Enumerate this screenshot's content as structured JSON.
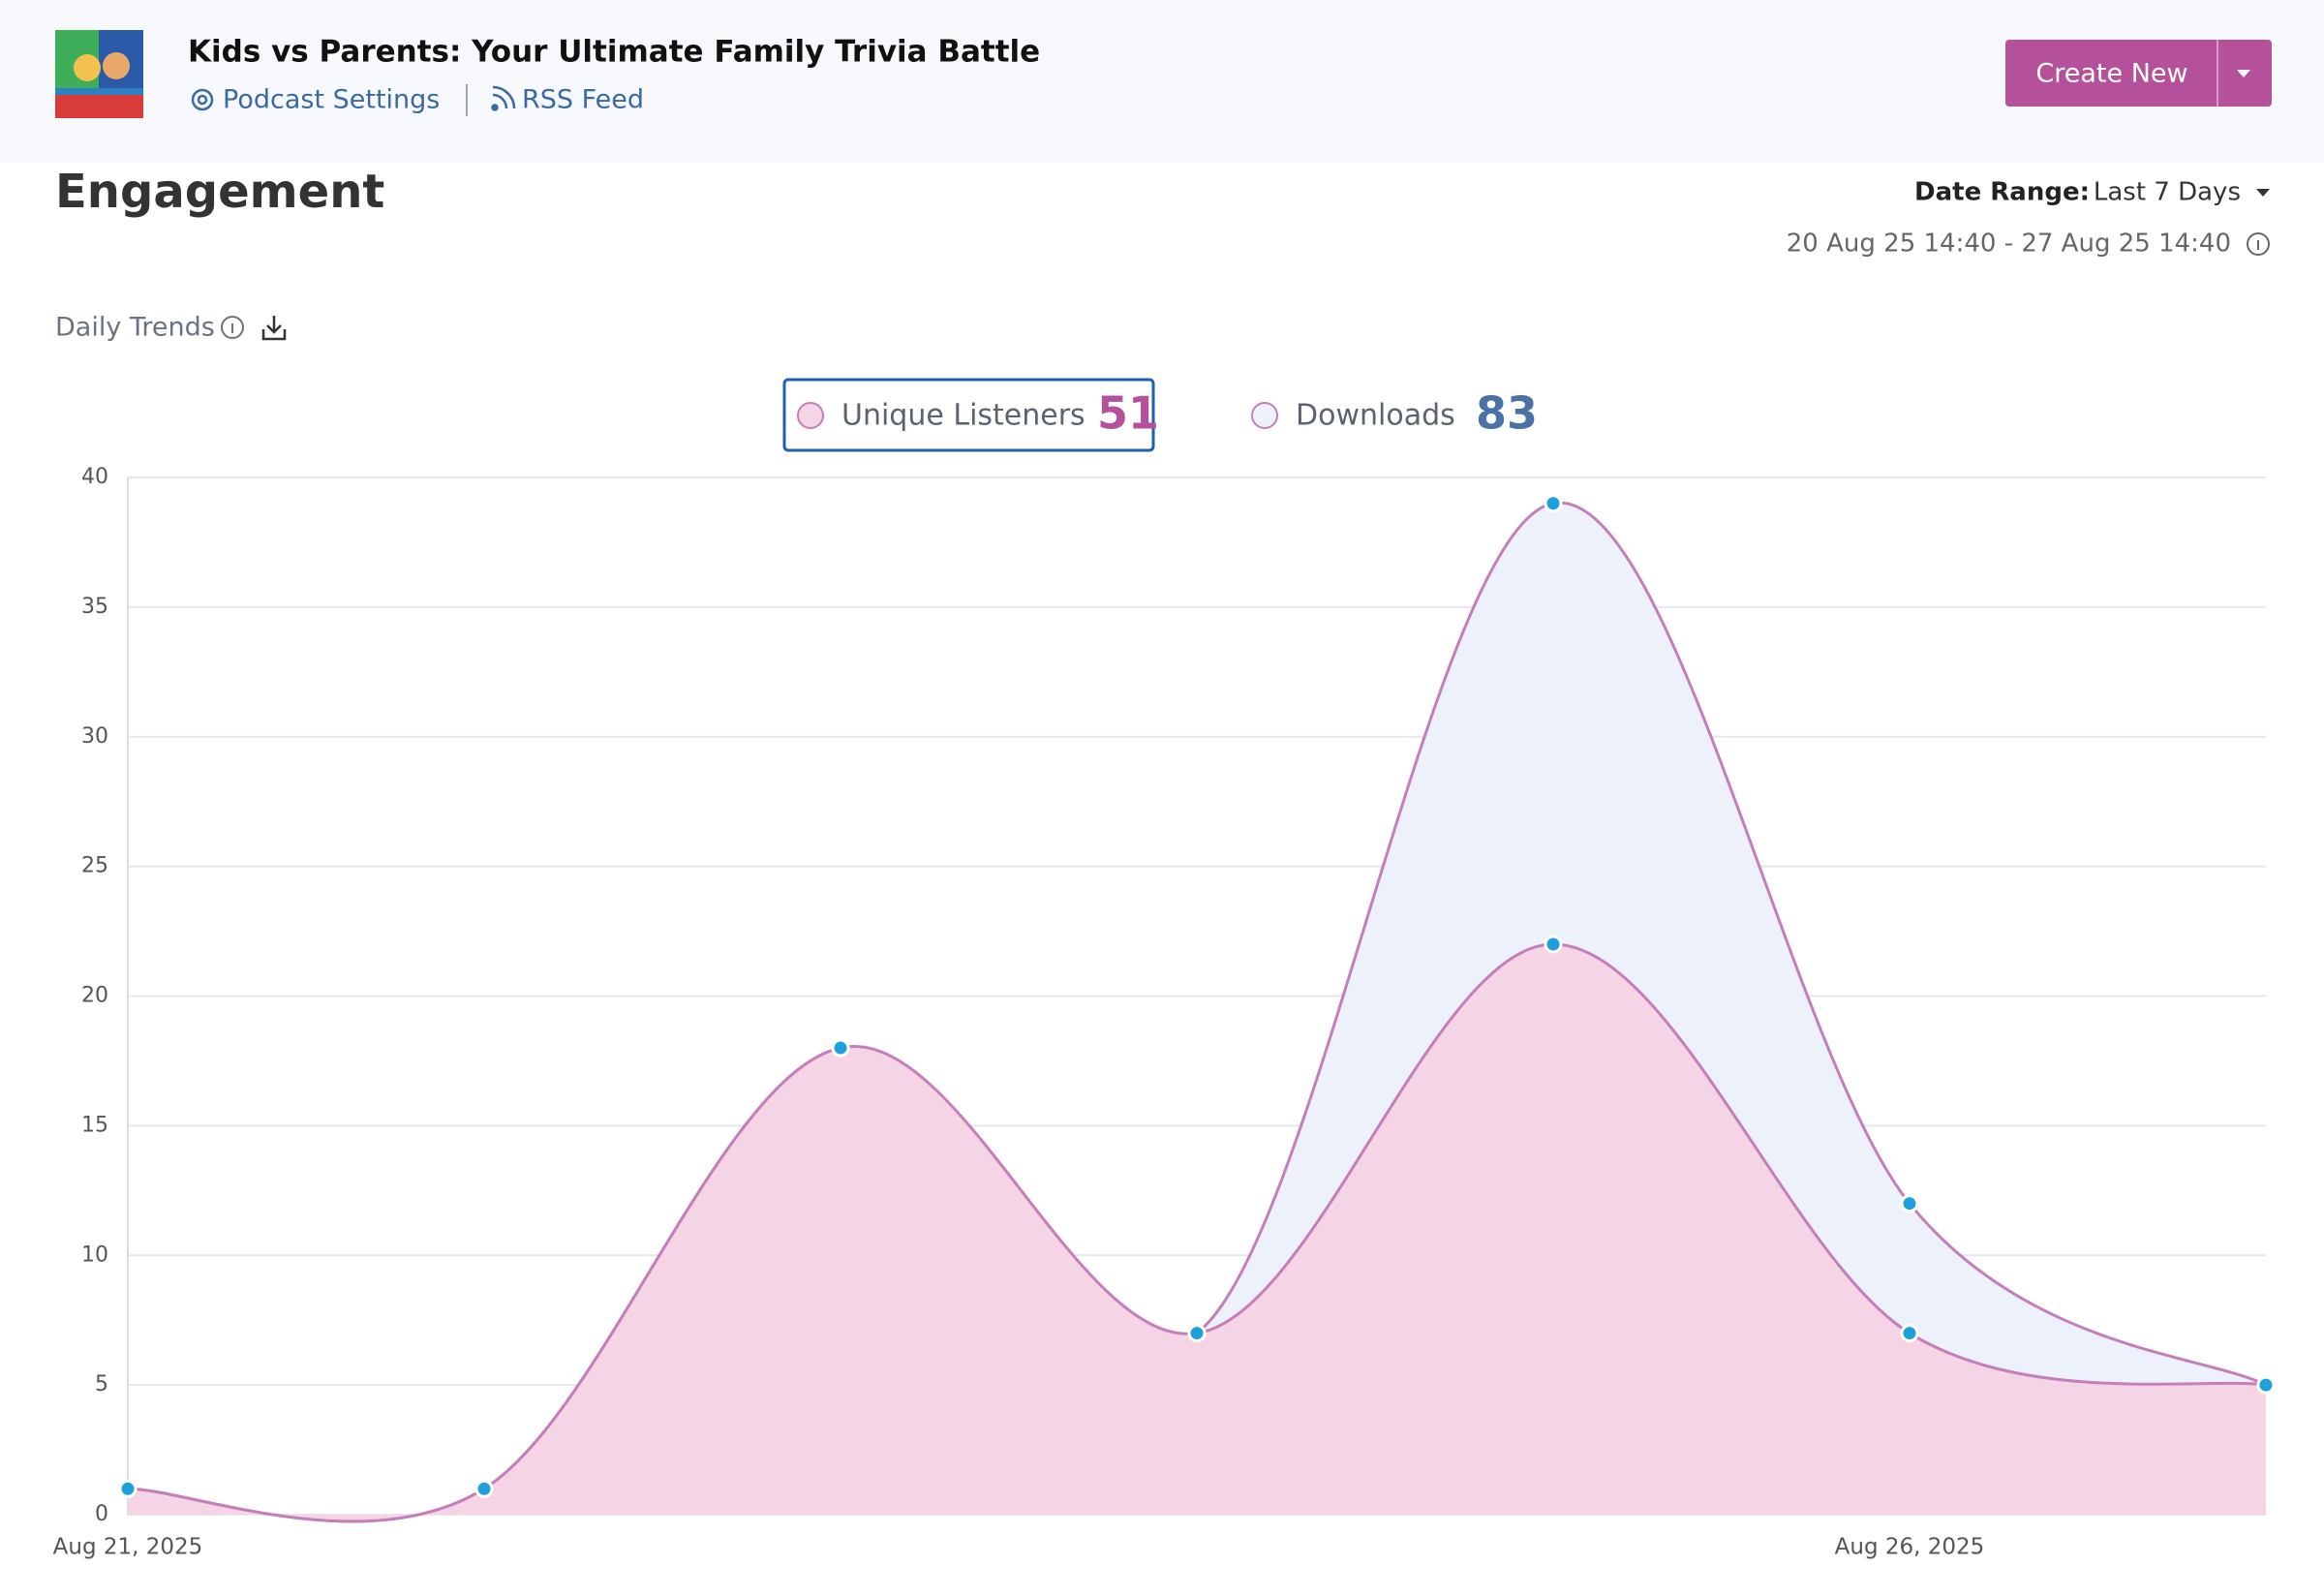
{
  "header": {
    "title": "Kids vs Parents: Your Ultimate Family Trivia Battle",
    "links": [
      "Podcast Settings",
      "RSS Feed"
    ],
    "button": "Create New"
  },
  "section": {
    "title": "Engagement",
    "date_range_label": "Date Range:",
    "date_range_value": "Last 7 Days",
    "range_text": "20 Aug 25 14:40 - 27 Aug 25 14:40",
    "subtitle": "Daily Trends"
  },
  "chart_data": {
    "type": "area",
    "categories": [
      "Aug 21, 2025",
      null,
      null,
      null,
      null,
      "Aug 26, 2025",
      null
    ],
    "series": [
      {
        "name": "Unique Listeners",
        "total": 51,
        "color": "#f5d4e6",
        "total_color": "#b5509a",
        "values": [
          1,
          1,
          18,
          7,
          22,
          7,
          5
        ]
      },
      {
        "name": "Downloads",
        "total": 83,
        "color": "#edf1fb",
        "total_color": "#4a72a5",
        "values": [
          1,
          1,
          18,
          7,
          39,
          12,
          5
        ]
      }
    ],
    "line_color": "#c47fba",
    "point_color": "#1ea0dc",
    "ylim": [
      0,
      40
    ],
    "yticks": [
      0,
      5,
      10,
      15,
      20,
      25,
      30,
      35,
      40
    ],
    "grid": true
  }
}
